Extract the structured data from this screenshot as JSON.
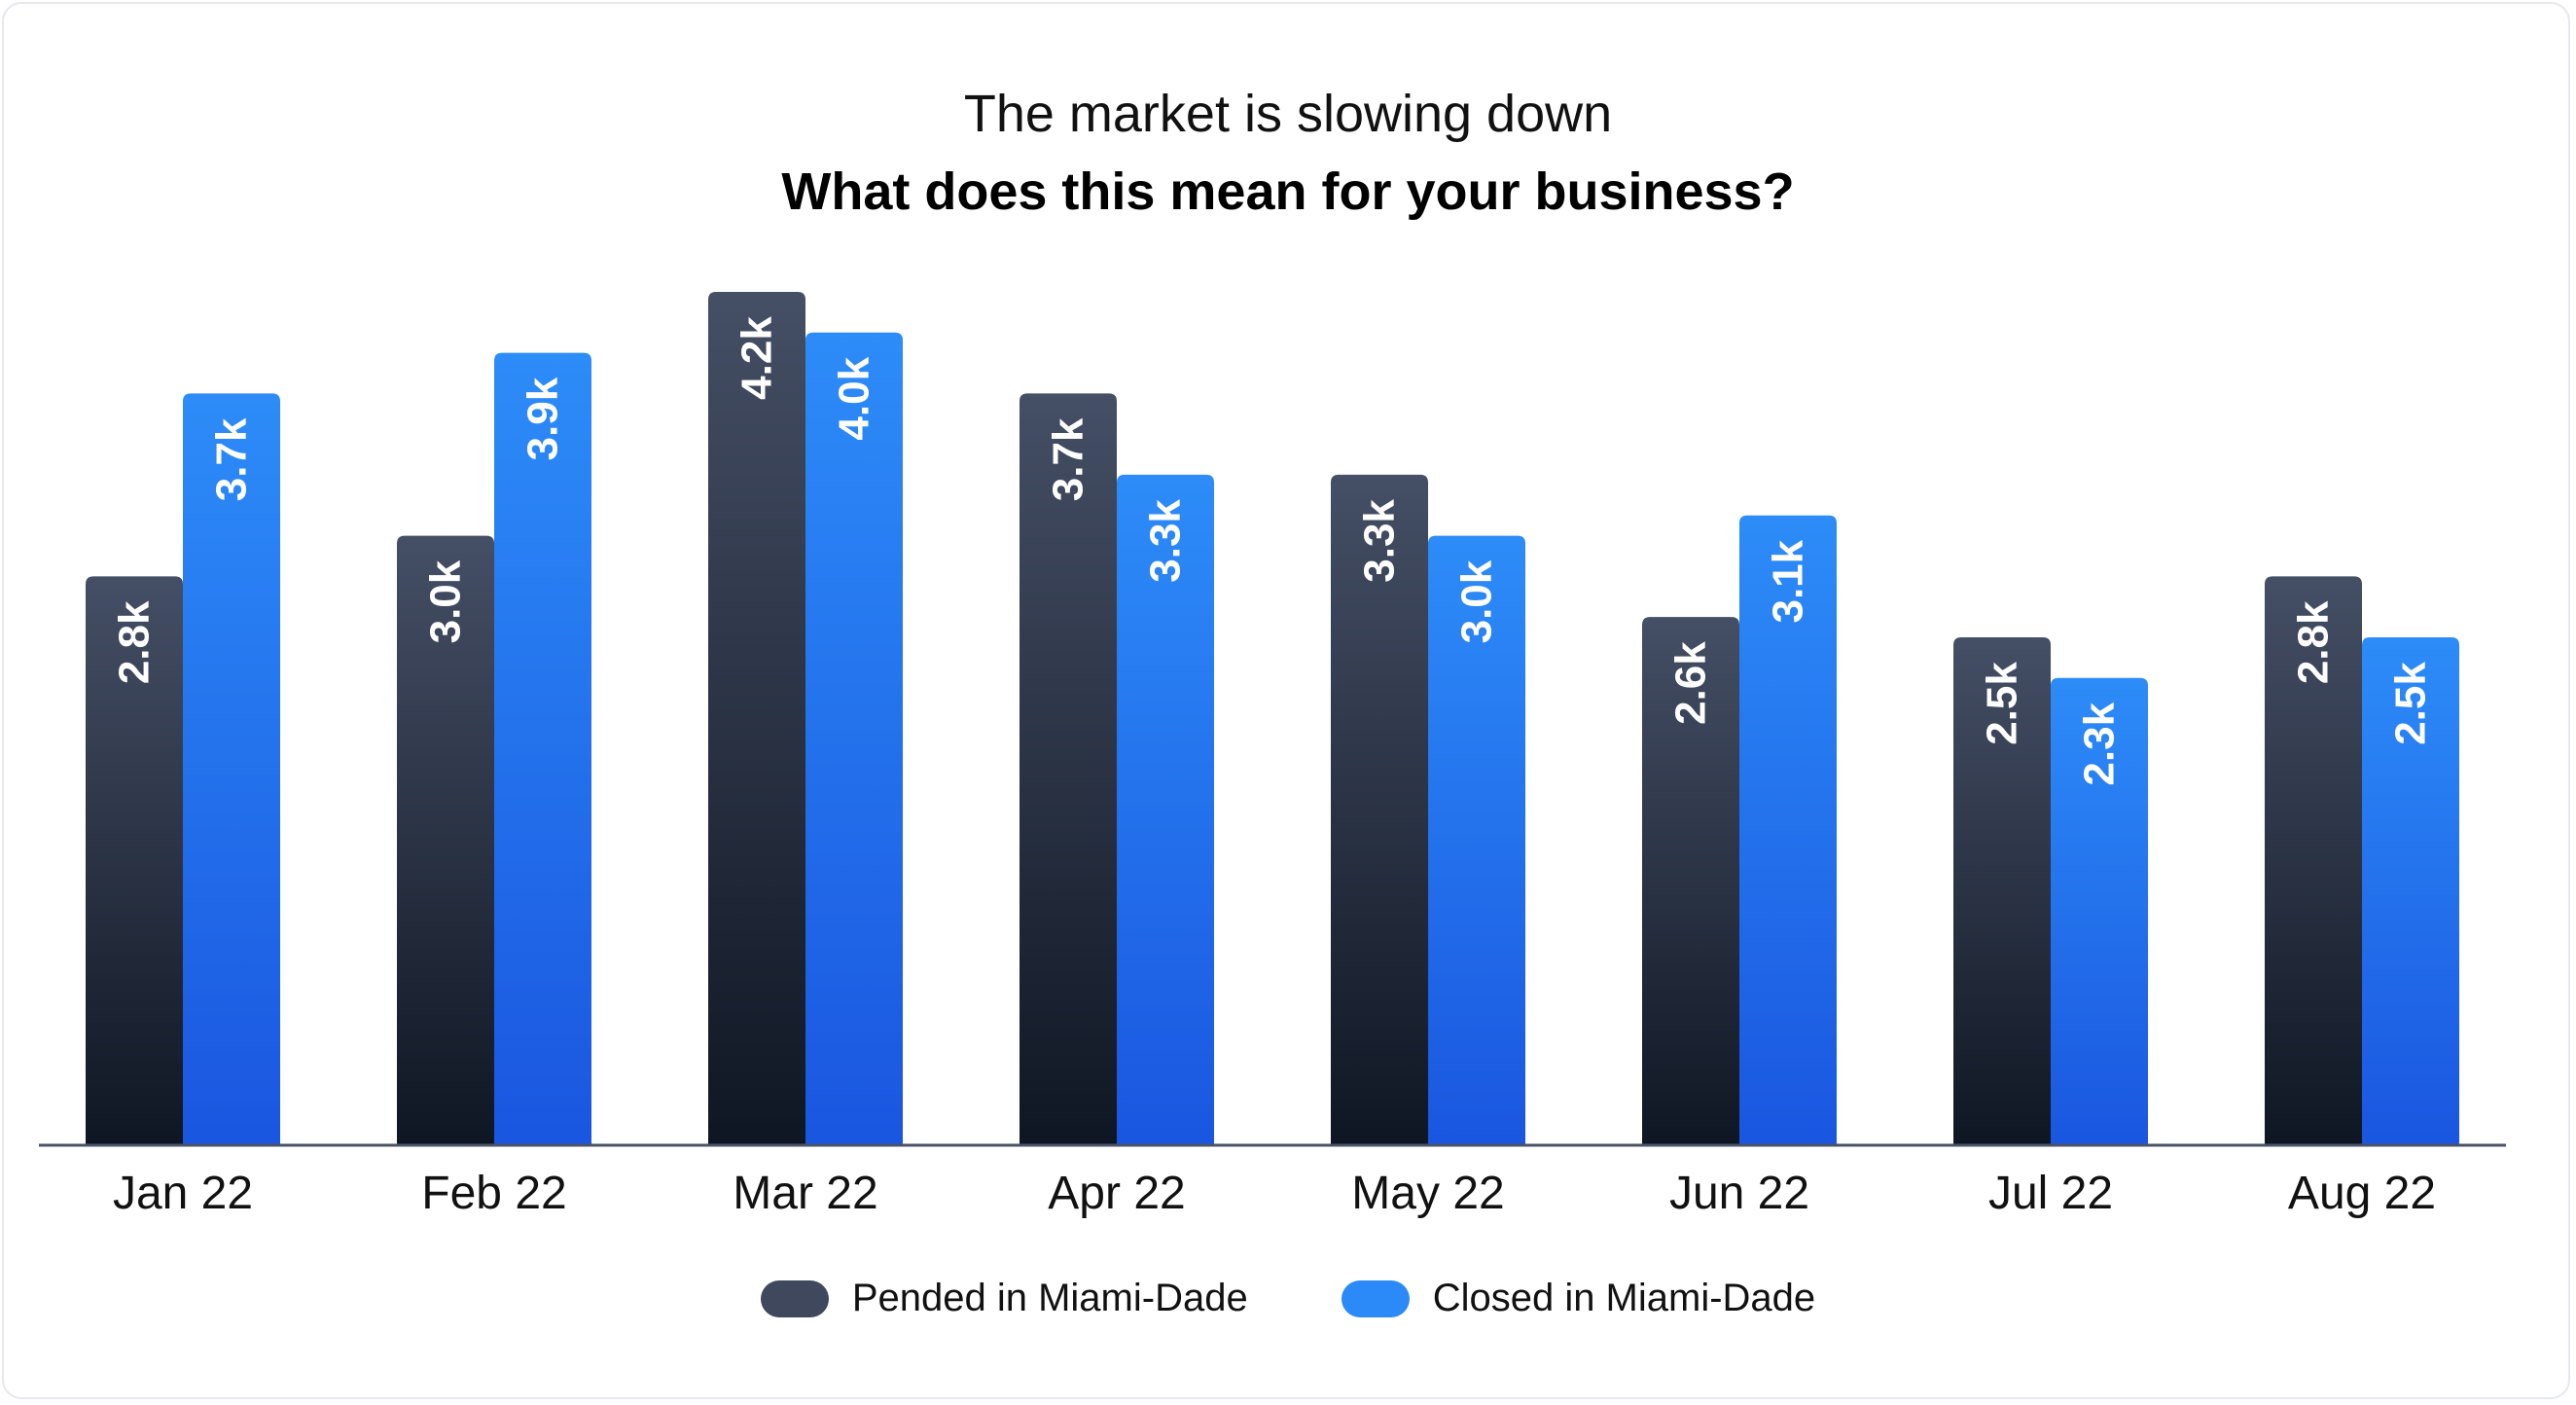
{
  "header": {
    "subtitle": "The market is slowing down",
    "title": "What does this mean for your business?"
  },
  "chart_data": {
    "type": "bar",
    "categories": [
      "Jan 22",
      "Feb 22",
      "Mar 22",
      "Apr 22",
      "May 22",
      "Jun 22",
      "Jul 22",
      "Aug 22"
    ],
    "series": [
      {
        "name": "Pended in Miami-Dade",
        "values": [
          2.8,
          3.0,
          4.2,
          3.7,
          3.3,
          2.6,
          2.5,
          2.8
        ],
        "labels": [
          "2.8k",
          "3.0k",
          "4.2k",
          "3.7k",
          "3.3k",
          "2.6k",
          "2.5k",
          "2.8k"
        ],
        "color_top": "#454f65",
        "color_bottom": "#0f1623"
      },
      {
        "name": "Closed in Miami-Dade",
        "values": [
          3.7,
          3.9,
          4.0,
          3.3,
          3.0,
          3.1,
          2.3,
          2.5
        ],
        "labels": [
          "3.7k",
          "3.9k",
          "4.0k",
          "3.3k",
          "3.0k",
          "3.1k",
          "2.3k",
          "2.5k"
        ],
        "color_top": "#2d8cf8",
        "color_bottom": "#1a56e0"
      }
    ],
    "ylim": [
      0,
      4.2
    ],
    "grid": false,
    "legend_position": "bottom-center"
  },
  "legend": {
    "items": [
      {
        "label": "Pended in Miami-Dade",
        "color": "#3f485c"
      },
      {
        "label": "Closed in Miami-Dade",
        "color": "#2b8af7"
      }
    ]
  }
}
